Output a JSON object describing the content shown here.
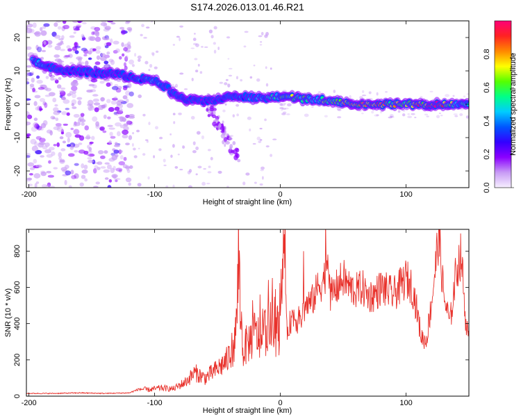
{
  "title": "S174.2026.013.01.46.R21",
  "colors": {
    "snr_line": "#e8302a",
    "ridge_core": "#e8232b",
    "colormap": [
      "#f7f0ff",
      "#c89bf5",
      "#8b00ff",
      "#3300ff",
      "#0055ff",
      "#00ccff",
      "#00ff88",
      "#55ff00",
      "#ffff00",
      "#ff8800",
      "#ff2222",
      "#ff0077"
    ]
  },
  "chart_data": [
    {
      "type": "heatmap",
      "name": "spectrogram",
      "xlabel": "Height of straight line (km)",
      "ylabel": "Frequency (Hz)",
      "xlim": [
        -202,
        150
      ],
      "ylim": [
        -25,
        25
      ],
      "xticks": [
        -200,
        -100,
        0,
        100
      ],
      "yticks": [
        -20,
        -10,
        0,
        10,
        20
      ],
      "colorbar": {
        "label": "Normalized spectral amplitude",
        "range": [
          0,
          1
        ],
        "ticks": [
          "0.0",
          "0.2",
          "0.4",
          "0.6",
          "0.8"
        ]
      },
      "ridge": {
        "x": [
          -197,
          -185,
          -170,
          -150,
          -130,
          -115,
          -100,
          -90,
          -85,
          -75,
          -65,
          -55,
          -45,
          -35,
          -20,
          -10,
          0,
          10,
          20,
          30,
          40,
          50,
          60,
          70,
          80,
          90,
          100,
          110,
          120,
          130,
          140,
          150
        ],
        "y": [
          13,
          11.5,
          10,
          9.5,
          9,
          8,
          7,
          5,
          3,
          1.5,
          1,
          1,
          2,
          2.5,
          2,
          2,
          2.5,
          2,
          1.5,
          1.5,
          1,
          0.5,
          0,
          0,
          0,
          0,
          0,
          0,
          0,
          0,
          0,
          0.5
        ],
        "amplitude": [
          0.45,
          0.35,
          0.35,
          0.3,
          0.3,
          0.35,
          0.4,
          0.35,
          0.35,
          0.3,
          0.3,
          0.25,
          0.35,
          0.4,
          0.4,
          0.45,
          0.55,
          0.6,
          0.55,
          0.6,
          0.65,
          0.7,
          0.8,
          0.8,
          0.75,
          0.7,
          0.7,
          0.85,
          0.9,
          0.85,
          0.5,
          0.45
        ]
      }
    },
    {
      "type": "line",
      "name": "snr",
      "xlabel": "Height of straight line (km)",
      "ylabel": "SNR (10 * v/v)",
      "xlim": [
        -202,
        150
      ],
      "ylim": [
        0,
        920
      ],
      "xticks": [
        -200,
        -100,
        0,
        100
      ],
      "yticks": [
        0,
        200,
        400,
        600,
        800
      ],
      "series": [
        {
          "x": [
            -202,
            -180,
            -160,
            -140,
            -120,
            -112,
            -105,
            -95,
            -85,
            -75,
            -68,
            -60,
            -50,
            -42,
            -36,
            -33,
            -30,
            -25,
            -20,
            -15,
            -10,
            -5,
            0,
            3,
            5,
            10,
            15,
            20,
            25,
            30,
            35,
            38,
            40,
            45,
            50,
            55,
            60,
            65,
            70,
            75,
            80,
            85,
            90,
            95,
            100,
            105,
            108,
            112,
            116,
            120,
            124,
            126,
            130,
            135,
            140,
            144,
            147,
            150
          ],
          "y": [
            15,
            15,
            18,
            15,
            18,
            40,
            35,
            45,
            40,
            80,
            130,
            100,
            150,
            200,
            300,
            700,
            250,
            300,
            350,
            300,
            400,
            350,
            380,
            900,
            350,
            450,
            400,
            500,
            520,
            600,
            650,
            800,
            550,
            600,
            650,
            600,
            580,
            600,
            550,
            560,
            600,
            580,
            560,
            600,
            650,
            600,
            500,
            330,
            300,
            500,
            750,
            900,
            550,
            400,
            700,
            780,
            450,
            300
          ]
        }
      ]
    }
  ]
}
